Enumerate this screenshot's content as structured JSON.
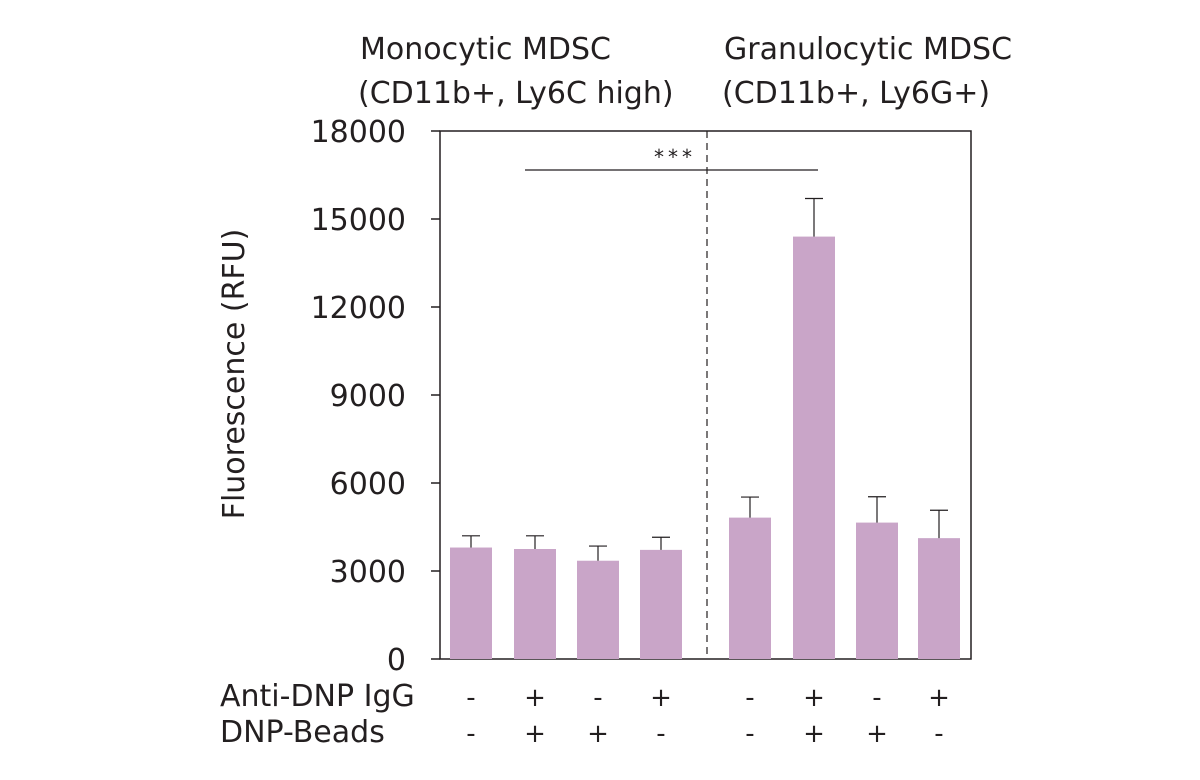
{
  "chart_data": {
    "type": "bar",
    "title": "",
    "xlabel": "",
    "ylabel": "Fluorescence (RFU)",
    "ylim": [
      0,
      18000
    ],
    "yticks": [
      0,
      3000,
      6000,
      9000,
      12000,
      15000,
      18000
    ],
    "grid": false,
    "groups": [
      {
        "title_line1": "Monocytic MDSC",
        "title_line2": "(CD11b+, Ly6C high)"
      },
      {
        "title_line1": "Granulocytic MDSC",
        "title_line2": "(CD11b+, Ly6G+)"
      }
    ],
    "bar_color": "#c9a5c8",
    "condition_rows": [
      {
        "label": "Anti-DNP IgG",
        "values": [
          "-",
          "+",
          "-",
          "+",
          "-",
          "+",
          "-",
          "+"
        ]
      },
      {
        "label": "DNP-Beads",
        "values": [
          "-",
          "+",
          "+",
          "-",
          "-",
          "+",
          "+",
          "-"
        ]
      }
    ],
    "values": [
      3800,
      3750,
      3350,
      3720,
      4820,
      14400,
      4650,
      4120
    ],
    "errors": [
      400,
      450,
      500,
      430,
      700,
      1300,
      880,
      950
    ],
    "significance": {
      "label": "***",
      "from_bar": 1,
      "to_bar": 5
    }
  }
}
